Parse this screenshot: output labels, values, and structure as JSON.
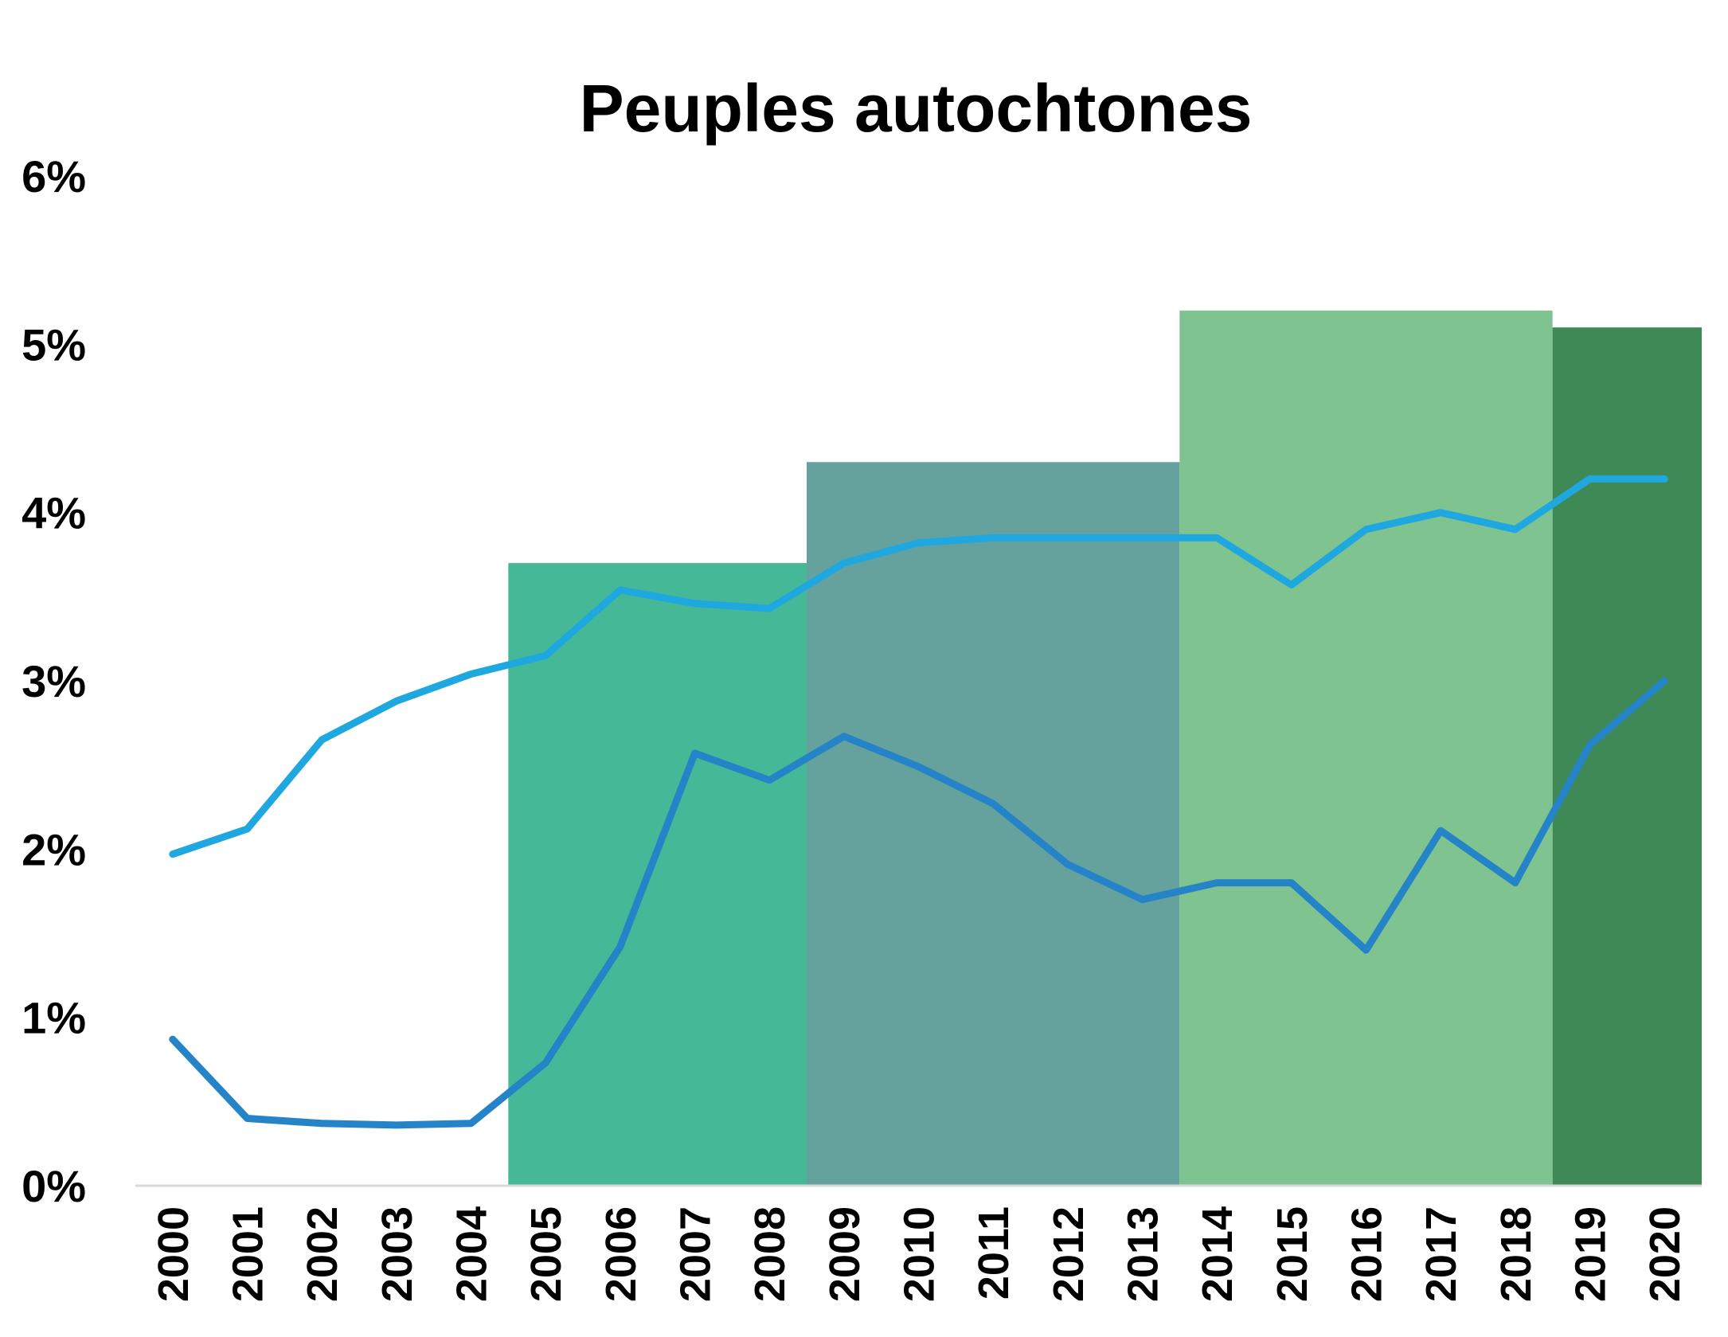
{
  "chart_data": {
    "type": "line",
    "title": "Peuples autochtones",
    "xlabel": "",
    "ylabel": "",
    "ylim": [
      0,
      6
    ],
    "y_ticks": [
      "0%",
      "1%",
      "2%",
      "3%",
      "4%",
      "5%",
      "6%"
    ],
    "categories": [
      "2000",
      "2001",
      "2002",
      "2003",
      "2004",
      "2005",
      "2006",
      "2007",
      "2008",
      "2009",
      "2010",
      "2011",
      "2012",
      "2013",
      "2014",
      "2015",
      "2016",
      "2017",
      "2018",
      "2019",
      "2020"
    ],
    "series": [
      {
        "color": "#1fa8e0",
        "values": [
          1.97,
          2.12,
          2.65,
          2.88,
          3.04,
          3.15,
          3.54,
          3.46,
          3.43,
          3.7,
          3.82,
          3.85,
          3.85,
          3.85,
          3.85,
          3.57,
          3.9,
          4.0,
          3.9,
          4.2,
          4.2
        ]
      },
      {
        "color": "#2584c8",
        "values": [
          0.87,
          0.4,
          0.37,
          0.36,
          0.37,
          0.73,
          1.42,
          2.57,
          2.41,
          2.67,
          2.49,
          2.27,
          1.91,
          1.7,
          1.8,
          1.8,
          1.4,
          2.11,
          1.8,
          2.62,
          3.0
        ]
      }
    ],
    "background_bands": [
      {
        "from": "2005",
        "to": "2008",
        "value": 3.7,
        "color": "#45b997"
      },
      {
        "from": "2009",
        "to": "2013",
        "value": 4.3,
        "color": "#66a29d"
      },
      {
        "from": "2014",
        "to": "2018",
        "value": 5.2,
        "color": "#7fc390"
      },
      {
        "from": "2019",
        "to": "2020",
        "value": 5.1,
        "color": "#3e8955"
      }
    ],
    "grid": false,
    "legend": "none",
    "axis_color": "#d9d9d9"
  }
}
